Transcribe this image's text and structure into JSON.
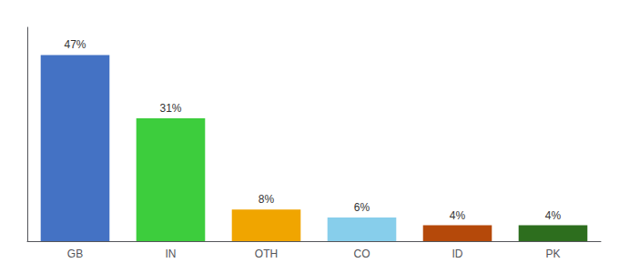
{
  "chart_data": {
    "type": "bar",
    "categories": [
      "GB",
      "IN",
      "OTH",
      "CO",
      "ID",
      "PK"
    ],
    "values": [
      47,
      31,
      8,
      6,
      4,
      4
    ],
    "value_labels": [
      "47%",
      "31%",
      "8%",
      "6%",
      "4%",
      "4%"
    ],
    "colors": [
      "#4472c4",
      "#3dcd3d",
      "#f0a500",
      "#87ceeb",
      "#b5490a",
      "#2d6e1e"
    ],
    "data_labels": true,
    "ylim": [
      0,
      54
    ],
    "tick_labels": "x",
    "grid": false
  }
}
